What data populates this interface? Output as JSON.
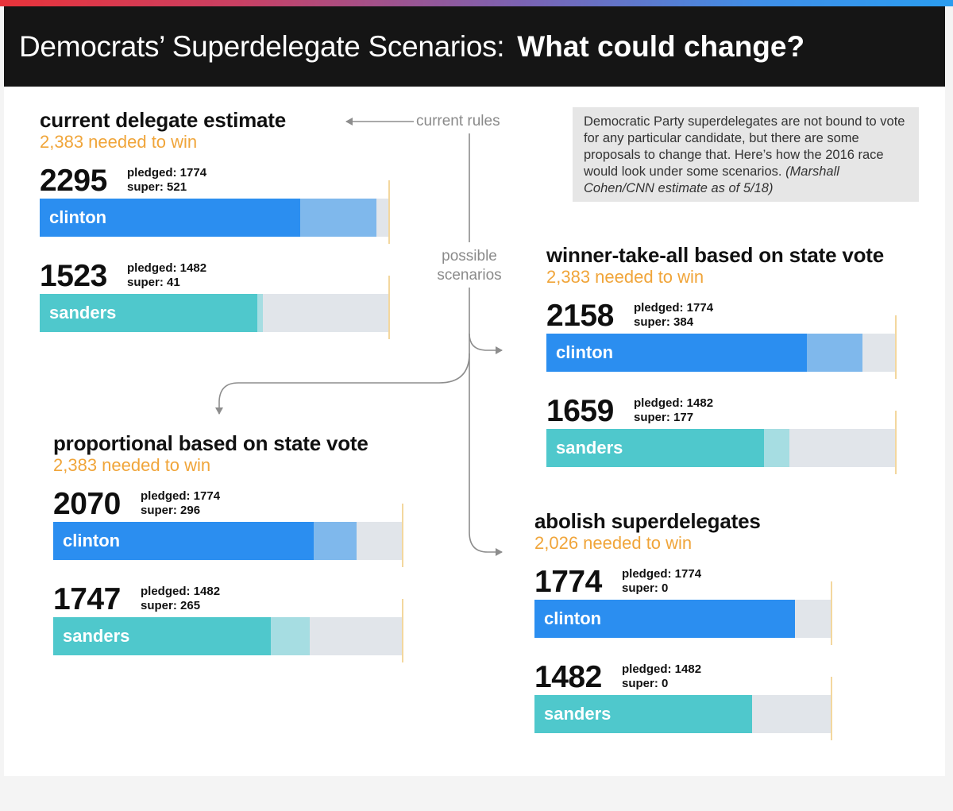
{
  "header": {
    "title_plain": "Democrats’ Superdelegate Scenarios:",
    "title_bold": "What could change?"
  },
  "note": {
    "text": "Democratic Party superdelegates are not bound to vote for any particular candidate, but there are some proposals to change that. Here’s how the 2016 race would look under some scenarios.",
    "source": "(Marshall Cohen/CNN estimate as of 5/18)"
  },
  "flow": {
    "current_rules": "current rules",
    "possible_line1": "possible",
    "possible_line2": "scenarios"
  },
  "colors": {
    "clinton_pledged": "#2b8ef0",
    "clinton_super": "#7fb8ec",
    "sanders_pledged": "#4fc8cc",
    "sanders_super": "#a6dde2",
    "remaining": "#e1e5ea",
    "needed_text": "#f0a53a",
    "threshold_tick": "#f3d79e"
  },
  "chart_data": [
    {
      "type": "bar",
      "title": "current delegate estimate",
      "subtitle": "2,383 needed to win",
      "needed": 2383,
      "candidates": [
        {
          "name": "clinton",
          "total": "2295",
          "pledged_label": "pledged: 1774",
          "super_label": "super: 521",
          "pledged": 1774,
          "super": 521
        },
        {
          "name": "sanders",
          "total": "1523",
          "pledged_label": "pledged: 1482",
          "super_label": "super: 41",
          "pledged": 1482,
          "super": 41
        }
      ]
    },
    {
      "type": "bar",
      "title": "winner-take-all based on state vote",
      "subtitle": "2,383 needed to win",
      "needed": 2383,
      "candidates": [
        {
          "name": "clinton",
          "total": "2158",
          "pledged_label": "pledged: 1774",
          "super_label": "super: 384",
          "pledged": 1774,
          "super": 384
        },
        {
          "name": "sanders",
          "total": "1659",
          "pledged_label": "pledged: 1482",
          "super_label": "super: 177",
          "pledged": 1482,
          "super": 177
        }
      ]
    },
    {
      "type": "bar",
      "title": "proportional based on state vote",
      "subtitle": "2,383 needed to win",
      "needed": 2383,
      "candidates": [
        {
          "name": "clinton",
          "total": "2070",
          "pledged_label": "pledged: 1774",
          "super_label": "super: 296",
          "pledged": 1774,
          "super": 296
        },
        {
          "name": "sanders",
          "total": "1747",
          "pledged_label": "pledged: 1482",
          "super_label": "super: 265",
          "pledged": 1482,
          "super": 265
        }
      ]
    },
    {
      "type": "bar",
      "title": "abolish superdelegates",
      "subtitle": "2,026 needed to win",
      "needed": 2026,
      "candidates": [
        {
          "name": "clinton",
          "total": "1774",
          "pledged_label": "pledged: 1774",
          "super_label": "super: 0",
          "pledged": 1774,
          "super": 0
        },
        {
          "name": "sanders",
          "total": "1482",
          "pledged_label": "pledged: 1482",
          "super_label": "super: 0",
          "pledged": 1482,
          "super": 0
        }
      ]
    }
  ]
}
